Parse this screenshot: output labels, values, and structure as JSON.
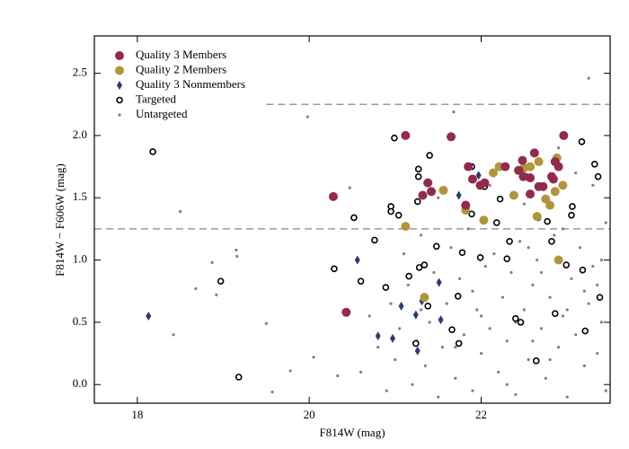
{
  "chart_data": {
    "type": "scatter",
    "xlabel": "F814W (mag)",
    "ylabel": "F814W − F606W (mag)",
    "xlim": [
      17.5,
      23.5
    ],
    "ylim": [
      -0.15,
      2.8
    ],
    "xticks": [
      18,
      20,
      22
    ],
    "yticks": [
      {
        "value": 0,
        "label": "0.0"
      },
      0.5,
      {
        "value": 1,
        "label": "1.0"
      },
      1.5,
      {
        "value": 2,
        "label": "2.0"
      },
      2.5
    ],
    "legend": "upper left",
    "reference_lines": [
      {
        "y": 2.25,
        "xlim": [
          19.5,
          23.5
        ]
      },
      {
        "y": 1.25,
        "xlim": [
          17.5,
          23.5
        ]
      }
    ],
    "series": [
      {
        "name": "Untargeted",
        "marker": "dot",
        "color": "#808080",
        "x": [
          18.5,
          18.68,
          18.42,
          18.87,
          18.92,
          19.16,
          19.15,
          19.5,
          19.57,
          19.78,
          19.98,
          20.05,
          20.33,
          20.47,
          21.68,
          23.25,
          20.6,
          20.7,
          20.8,
          20.9,
          20.95,
          21.0,
          21.05,
          21.1,
          21.15,
          21.2,
          21.25,
          21.3,
          21.35,
          21.4,
          21.45,
          21.5,
          21.55,
          21.6,
          21.65,
          21.7,
          21.75,
          21.8,
          21.85,
          21.9,
          21.95,
          22.0,
          22.05,
          22.1,
          22.15,
          22.2,
          22.25,
          22.3,
          22.35,
          22.4,
          22.45,
          22.5,
          22.55,
          22.6,
          22.65,
          22.7,
          22.75,
          22.8,
          22.85,
          22.9,
          22.95,
          23.0,
          23.05,
          23.1,
          23.15,
          23.2,
          23.25,
          23.3,
          23.35,
          23.4,
          23.45,
          23.45,
          22.1,
          22.9,
          23.3,
          22.5,
          21.5,
          23.1,
          22.7,
          22.3,
          21.9,
          22.0,
          22.6,
          23.2,
          22.8,
          23.0,
          21.3,
          21.7,
          22.4,
          22.55,
          23.4,
          22.95,
          23.35
        ],
        "y": [
          1.39,
          0.77,
          0.4,
          0.98,
          0.72,
          1.03,
          1.08,
          0.49,
          -0.06,
          0.11,
          2.15,
          0.22,
          0.07,
          1.58,
          2.19,
          2.46,
          0.1,
          0.55,
          0.3,
          -0.05,
          0.65,
          0.2,
          0.45,
          1.05,
          0.8,
          0.0,
          0.35,
          1.2,
          0.15,
          0.5,
          0.9,
          -0.1,
          0.3,
          0.65,
          1.1,
          0.05,
          0.85,
          0.4,
          1.25,
          -0.05,
          0.6,
          0.25,
          0.95,
          0.45,
          1.05,
          0.1,
          0.7,
          0.35,
          0.9,
          -0.08,
          1.15,
          0.6,
          0.2,
          0.8,
          1.0,
          0.45,
          0.05,
          0.7,
          1.2,
          0.3,
          0.55,
          -0.1,
          0.85,
          0.4,
          1.1,
          0.15,
          0.65,
          0.95,
          0.25,
          0.5,
          -0.05,
          1.3,
          1.6,
          1.9,
          1.6,
          1.45,
          1.5,
          1.7,
          0.9,
          0.0,
          0.75,
          0.55,
          0.35,
          0.75,
          0.2,
          0.6,
          0.6,
          0.3,
          0.5,
          1.1,
          1.0,
          1.25,
          0.8
        ]
      },
      {
        "name": "Targeted",
        "marker": "open-circle",
        "color": "#000000",
        "x": [
          18.18,
          18.97,
          19.18,
          20.29,
          20.52,
          20.6,
          20.76,
          20.89,
          20.95,
          20.95,
          20.99,
          21.04,
          21.16,
          21.24,
          21.27,
          21.27,
          21.28,
          21.26,
          21.34,
          21.38,
          21.4,
          21.48,
          21.66,
          21.73,
          21.74,
          21.78,
          21.89,
          21.89,
          21.99,
          22.04,
          22.18,
          22.22,
          22.3,
          22.33,
          22.4,
          22.46,
          22.52,
          22.64,
          22.66,
          22.77,
          22.82,
          22.86,
          22.99,
          23.05,
          23.06,
          23.17,
          23.18,
          23.21,
          23.32,
          23.36,
          23.38
        ],
        "y": [
          1.87,
          0.83,
          0.06,
          0.93,
          1.34,
          0.83,
          1.16,
          0.78,
          1.43,
          1.39,
          1.98,
          1.36,
          0.87,
          0.33,
          1.73,
          1.67,
          0.94,
          1.47,
          0.96,
          0.63,
          1.84,
          1.11,
          0.44,
          0.71,
          0.33,
          1.06,
          1.75,
          1.37,
          1.02,
          1.59,
          1.3,
          1.49,
          1.01,
          1.15,
          0.53,
          0.5,
          1.67,
          0.19,
          1.34,
          1.31,
          1.15,
          0.57,
          0.96,
          1.36,
          1.43,
          1.95,
          0.92,
          0.43,
          1.77,
          1.67,
          0.7
        ]
      },
      {
        "name": "Quality 3 Nonmembers",
        "marker": "diamond",
        "color": "#2b3a78",
        "x": [
          18.13,
          20.56,
          20.8,
          20.97,
          21.07,
          21.24,
          21.26,
          21.31,
          21.51,
          21.53,
          21.74,
          21.97
        ],
        "y": [
          0.55,
          1.0,
          0.39,
          0.37,
          0.63,
          0.56,
          0.27,
          0.67,
          0.82,
          0.52,
          1.52,
          1.68
        ]
      },
      {
        "name": "Quality 2 Members",
        "marker": "circle",
        "color": "#b0963a",
        "x": [
          21.12,
          21.34,
          21.56,
          21.82,
          22.03,
          22.14,
          22.21,
          22.38,
          22.43,
          22.5,
          22.57,
          22.67,
          22.65,
          22.75,
          22.8,
          22.86,
          22.88,
          22.9,
          22.95
        ],
        "y": [
          1.27,
          0.7,
          1.56,
          1.4,
          1.32,
          1.7,
          1.75,
          1.52,
          1.72,
          1.74,
          1.75,
          1.79,
          1.35,
          1.49,
          1.44,
          1.55,
          1.82,
          1.0,
          1.6
        ]
      },
      {
        "name": "Quality 3 Members",
        "marker": "circle",
        "color": "#922a4b",
        "x": [
          20.28,
          20.43,
          21.12,
          21.32,
          21.38,
          21.42,
          21.65,
          21.82,
          21.85,
          21.9,
          21.99,
          22.04,
          22.28,
          22.44,
          22.49,
          22.48,
          22.57,
          22.62,
          22.57,
          22.67,
          22.72,
          22.82,
          22.86,
          22.9,
          22.96,
          22.84
        ],
        "y": [
          1.51,
          0.58,
          2.0,
          1.52,
          1.62,
          1.55,
          1.99,
          1.44,
          1.75,
          1.65,
          1.6,
          1.62,
          1.75,
          1.72,
          1.67,
          1.8,
          1.66,
          1.86,
          1.53,
          1.59,
          1.59,
          1.67,
          1.79,
          1.75,
          2.0,
          1.65
        ]
      }
    ]
  }
}
